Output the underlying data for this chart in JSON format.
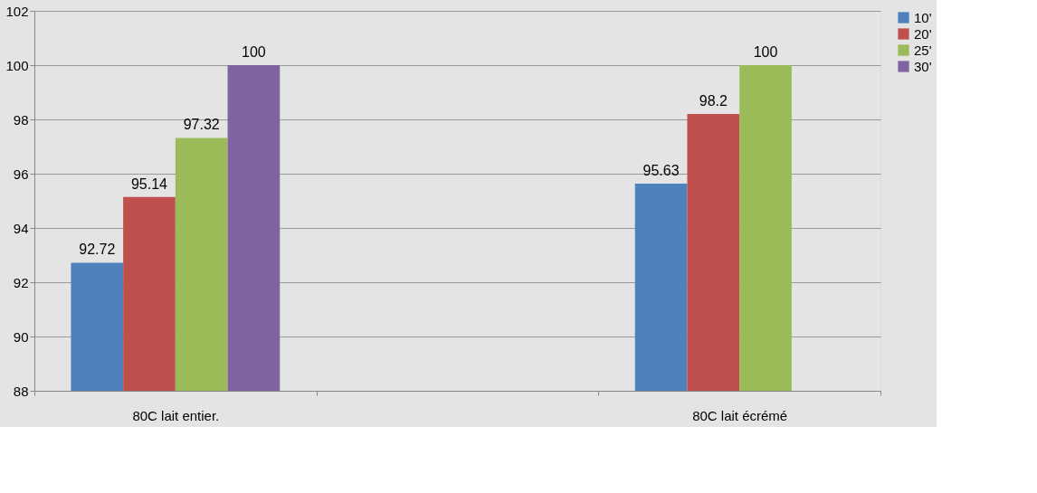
{
  "chart_data": {
    "type": "bar",
    "categories": [
      "80C lait entier.",
      null,
      "80C lait écrémé"
    ],
    "series": [
      {
        "name": "10'",
        "color": "#4f81bd",
        "values": [
          92.72,
          null,
          95.63
        ]
      },
      {
        "name": "20'",
        "color": "#c0504d",
        "values": [
          95.14,
          null,
          98.2
        ]
      },
      {
        "name": "25'",
        "color": "#9bbb59",
        "values": [
          97.32,
          null,
          100
        ]
      },
      {
        "name": "30'",
        "color": "#8064a2",
        "values": [
          100,
          null,
          null
        ]
      }
    ],
    "ylim": [
      88,
      102
    ],
    "yticks": [
      88,
      90,
      92,
      94,
      96,
      98,
      100,
      102
    ],
    "grid": "y",
    "legend": "right",
    "data_labels": true
  }
}
